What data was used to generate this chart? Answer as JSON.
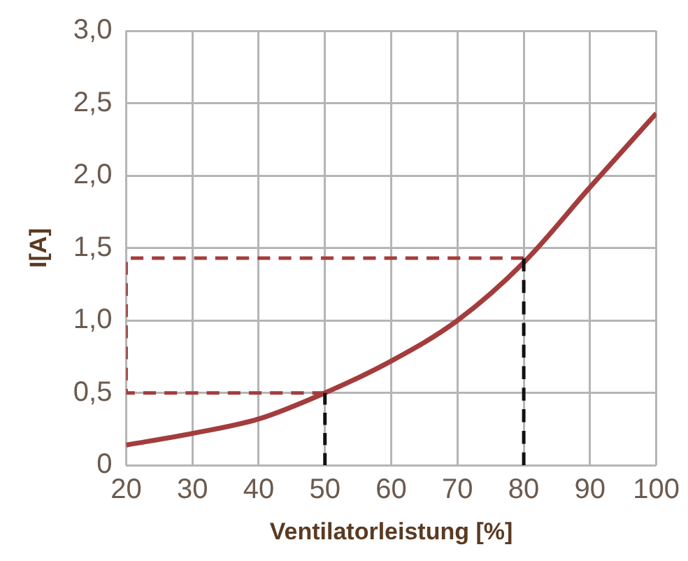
{
  "chart_data": {
    "type": "line",
    "xlabel": "Ventilatorleistung [%]",
    "ylabel": "I[A]",
    "x": [
      20,
      30,
      40,
      50,
      60,
      70,
      80,
      90,
      100
    ],
    "xlim": [
      20,
      100
    ],
    "xticks": [
      20,
      30,
      40,
      50,
      60,
      70,
      80,
      90,
      100
    ],
    "ylim": [
      0,
      3
    ],
    "yticks": [
      {
        "value": 0,
        "label": "0"
      },
      {
        "value": 0.5,
        "label": "0,5"
      },
      {
        "value": 1,
        "label": "1,0"
      },
      {
        "value": 1.5,
        "label": "1,5"
      },
      {
        "value": 2,
        "label": "2,0"
      },
      {
        "value": 2.5,
        "label": "2,5"
      },
      {
        "value": 3,
        "label": "3,0"
      }
    ],
    "grid": true,
    "marker": "none",
    "series": [
      {
        "color": "#a33c3c",
        "values": [
          0.14,
          0.22,
          0.32,
          0.5,
          0.72,
          1.0,
          1.4,
          1.92,
          2.43
        ]
      },
      {
        "type": "line",
        "line_style": "dashed",
        "color": "#a33c3c",
        "x": [
          50,
          20,
          20,
          80
        ],
        "values": [
          0.5,
          0.5,
          1.43,
          1.43
        ]
      },
      {
        "type": "line",
        "line_style": "dashed",
        "color": "#111111",
        "x": [
          50,
          50
        ],
        "values": [
          0,
          0.5
        ]
      },
      {
        "type": "line",
        "line_style": "dashed",
        "color": "#111111",
        "x": [
          80,
          80
        ],
        "values": [
          0,
          1.43
        ]
      }
    ]
  }
}
